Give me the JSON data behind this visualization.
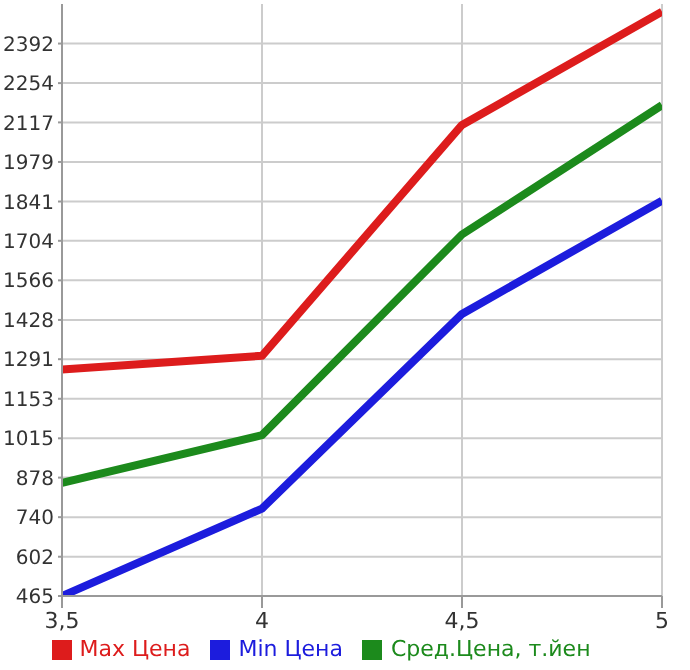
{
  "chart_data": {
    "type": "line",
    "x": [
      3.5,
      4,
      4.5,
      5
    ],
    "series": [
      {
        "name": "Max Цена",
        "color": "#dd1c1c",
        "values": [
          1255,
          1303,
          2108,
          2503
        ]
      },
      {
        "name": "Min Цена",
        "color": "#1c1cdd",
        "values": [
          465,
          770,
          1449,
          1844
        ]
      },
      {
        "name": "Сред.Цена, т.йен",
        "color": "#1c8a1c",
        "values": [
          860,
          1026,
          1726,
          2177
        ]
      }
    ],
    "xlim": [
      3.5,
      5
    ],
    "xticks": [
      {
        "value": 3.5,
        "label": "3,5"
      },
      4,
      {
        "value": 4.5,
        "label": "4,5"
      },
      5
    ],
    "ylim": [
      465,
      2530
    ],
    "yticks": [
      465,
      602,
      740,
      878,
      1015,
      1153,
      1291,
      1428,
      1566,
      1704,
      1841,
      1979,
      2117,
      2254,
      2392
    ],
    "grid": true,
    "legend": "bottom",
    "marker": "none",
    "line_style": "solid"
  }
}
